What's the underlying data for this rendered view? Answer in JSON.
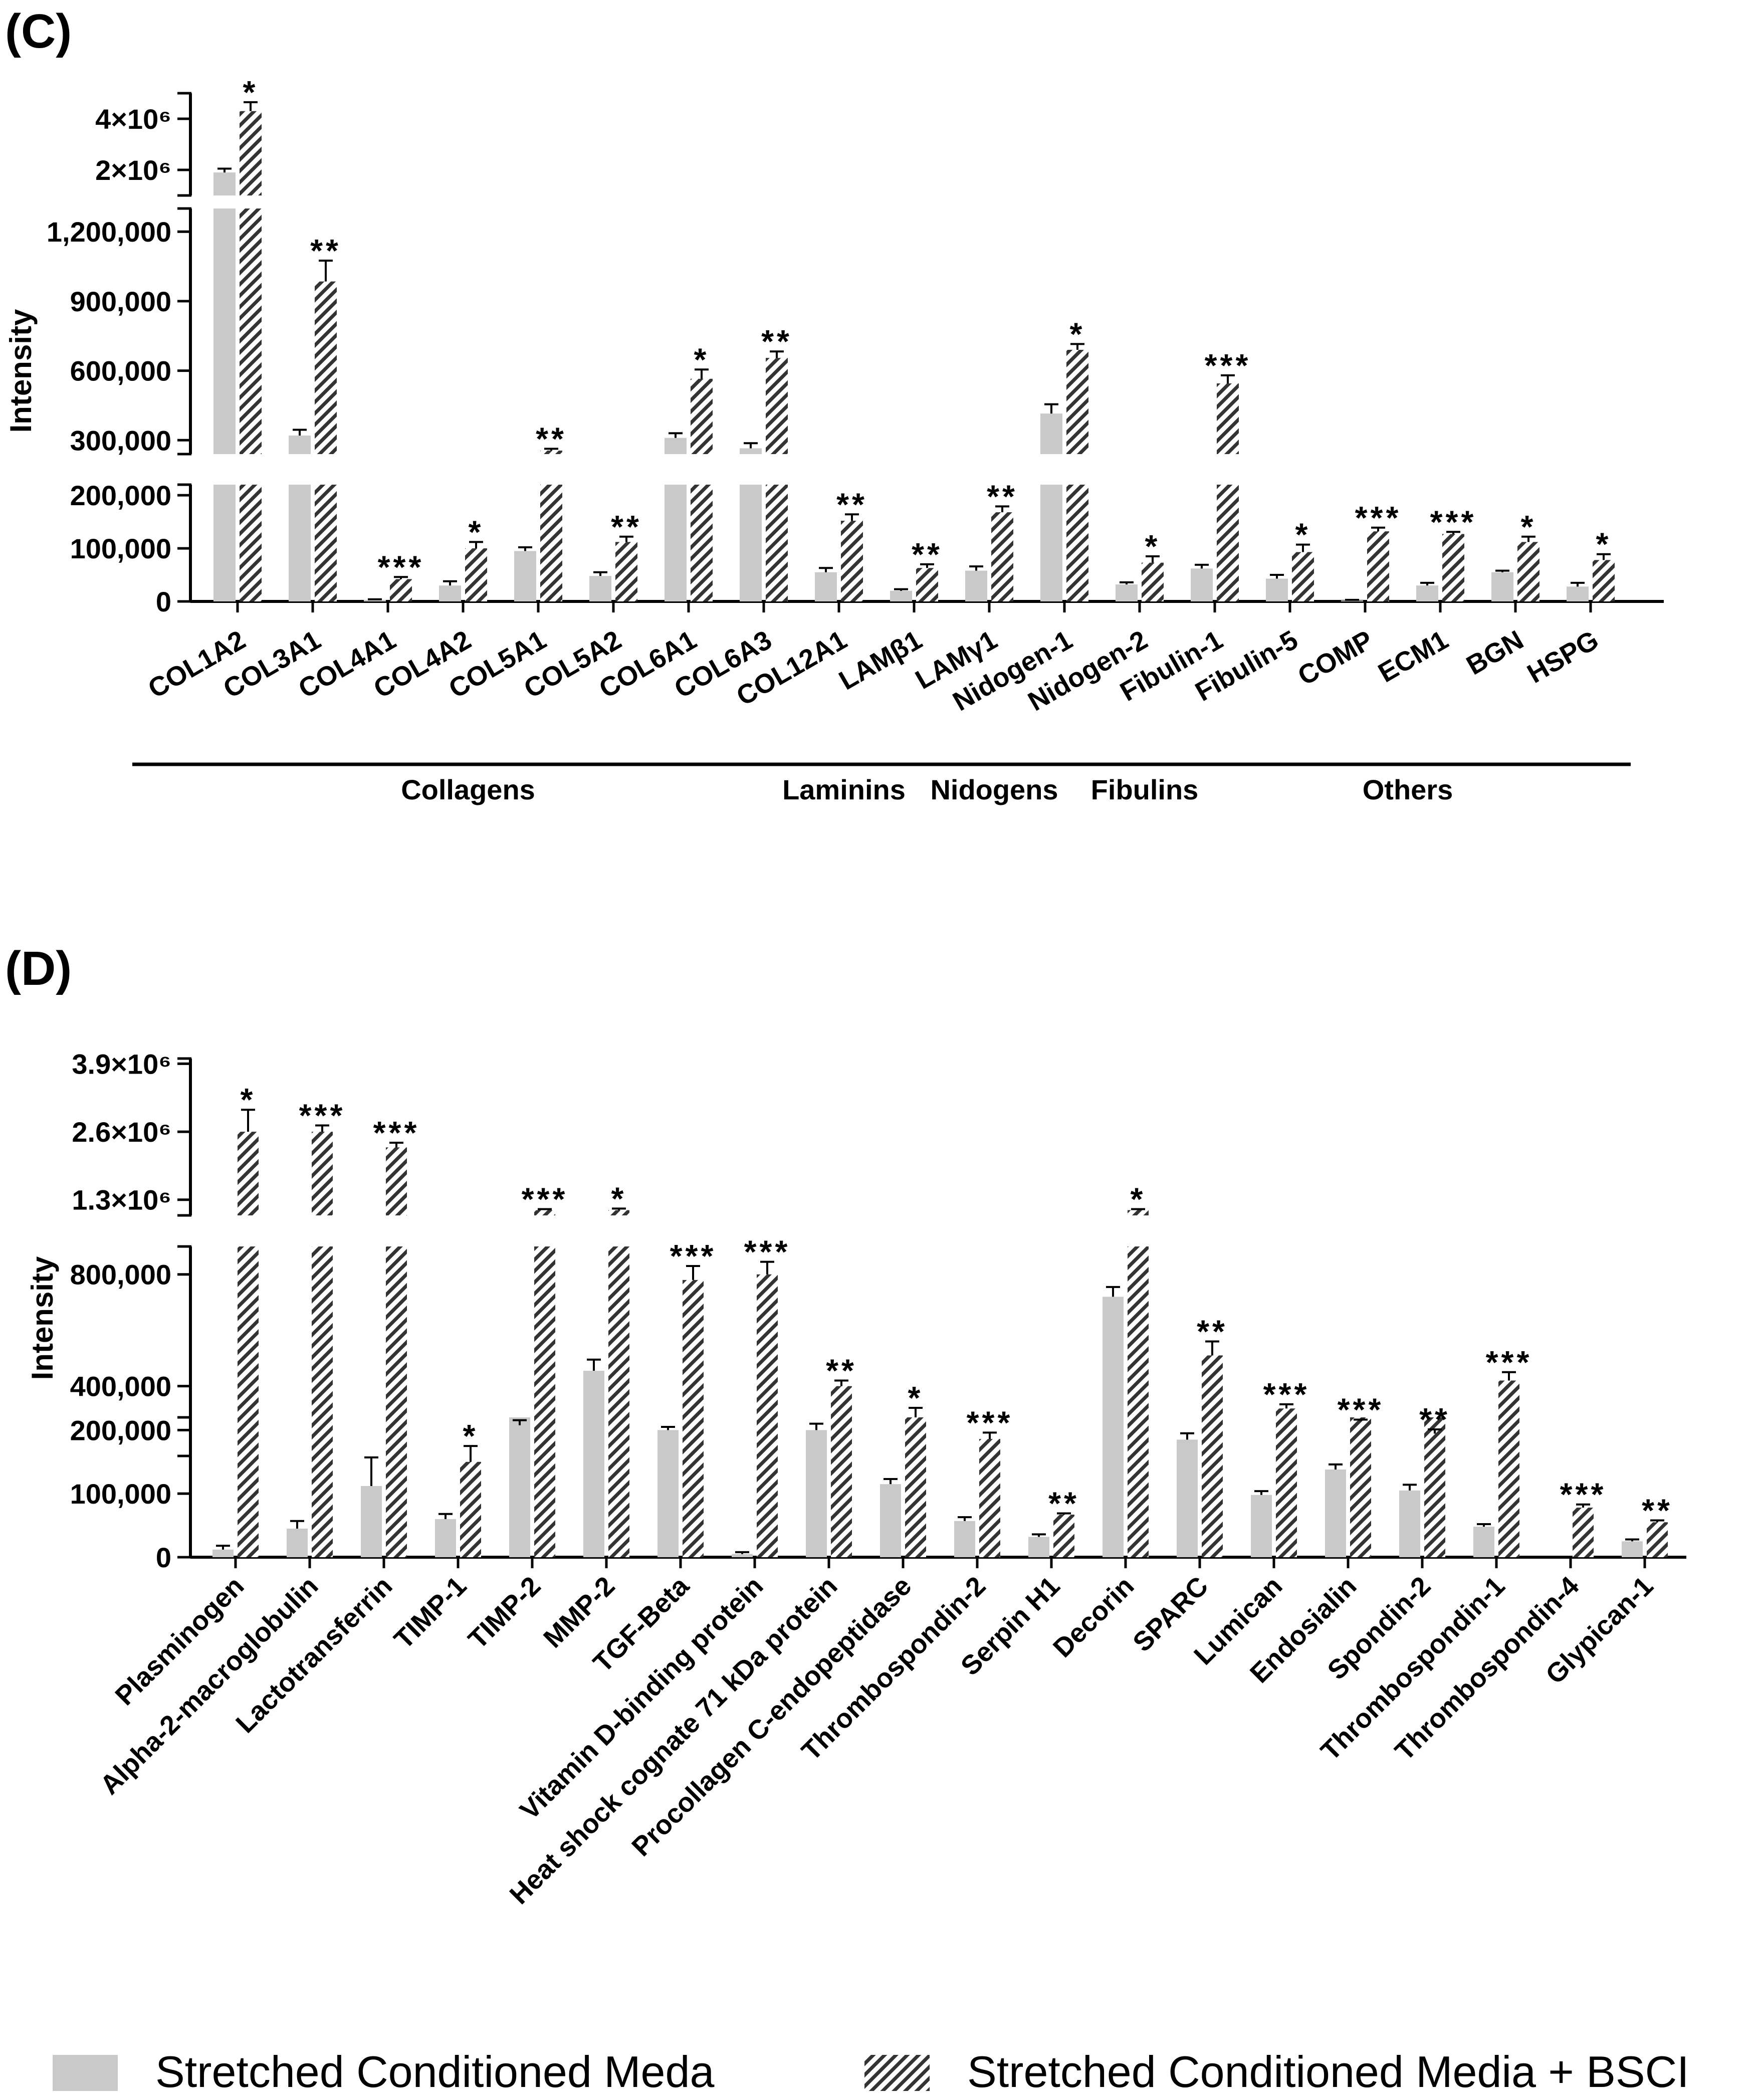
{
  "colors": {
    "bar1": "#c9c9c9",
    "bar2_hatch": "#333333",
    "axis": "#000000"
  },
  "legend": {
    "items": [
      {
        "label": "Stretched Conditioned Meda",
        "pattern": "solid"
      },
      {
        "label": "Stretched Conditioned Media + BSCI",
        "pattern": "hatched"
      }
    ]
  },
  "chart_data": [
    {
      "panel": "(C)",
      "type": "bar",
      "ylabel": "Intensity",
      "series_names": [
        "Stretched Conditioned Meda",
        "Stretched Conditioned Media + BSCI"
      ],
      "y_segments": [
        {
          "range": [
            0,
            220000
          ],
          "ticks": [
            0,
            100000,
            200000
          ],
          "tick_labels": [
            "0",
            "100,000",
            "200,000"
          ]
        },
        {
          "range": [
            240000,
            1300000
          ],
          "ticks": [
            300000,
            600000,
            900000,
            1200000
          ],
          "tick_labels": [
            "300,000",
            "600,000",
            "900,000",
            "1,200,000"
          ]
        },
        {
          "range": [
            1000000,
            5000000
          ],
          "ticks": [
            2000000,
            4000000
          ],
          "tick_labels": [
            "2×10⁶",
            "4×10⁶"
          ]
        }
      ],
      "categories": [
        "COL1A2",
        "COL3A1",
        "COL4A1",
        "COL4A2",
        "COL5A1",
        "COL5A2",
        "COL6A1",
        "COL6A3",
        "COL12A1",
        "LAMβ1",
        "LAMγ1",
        "Nidogen-1",
        "Nidogen-2",
        "Fibulin-1",
        "Fibulin-5",
        "COMP",
        "ECM1",
        "BGN",
        "HSPG"
      ],
      "series": [
        {
          "name": "Stretched Conditioned Meda",
          "values": [
            1900000,
            320000,
            3000,
            30000,
            95000,
            48000,
            310000,
            265000,
            55000,
            20000,
            58000,
            415000,
            32000,
            62000,
            43000,
            2000,
            30000,
            55000,
            28000
          ],
          "errors": [
            150000,
            25000,
            1000,
            8000,
            7000,
            7000,
            20000,
            22000,
            8000,
            3000,
            8000,
            40000,
            4000,
            7000,
            7000,
            1000,
            5000,
            3000,
            7000
          ]
        },
        {
          "name": "Stretched Conditioned Media + BSCI",
          "values": [
            4300000,
            985000,
            42000,
            100000,
            255000,
            112000,
            565000,
            655000,
            152000,
            63000,
            168000,
            690000,
            73000,
            545000,
            93000,
            132000,
            127000,
            112000,
            78000
          ],
          "errors": [
            350000,
            90000,
            4000,
            12000,
            8000,
            10000,
            40000,
            28000,
            12000,
            7000,
            11000,
            25000,
            12000,
            35000,
            14000,
            7000,
            4000,
            10000,
            11000
          ]
        }
      ],
      "significance": [
        "*",
        "**",
        "***",
        "*",
        "**",
        "**",
        "*",
        "**",
        "**",
        "**",
        "**",
        "*",
        "*",
        "***",
        "*",
        "***",
        "***",
        "*",
        "*"
      ],
      "groups": [
        {
          "label": "Collagens",
          "from": 0,
          "to": 7
        },
        {
          "label": "Laminins",
          "from": 8,
          "to": 9
        },
        {
          "label": "Nidogens",
          "from": 10,
          "to": 11
        },
        {
          "label": "Fibulins",
          "from": 12,
          "to": 13
        },
        {
          "label": "Others",
          "from": 14,
          "to": 18
        }
      ]
    },
    {
      "panel": "(D)",
      "type": "bar",
      "ylabel": "Intensity",
      "series_names": [
        "Stretched Conditioned Meda",
        "Stretched Conditioned Media + BSCI"
      ],
      "y_segments": [
        {
          "range": [
            0,
            220000
          ],
          "ticks": [
            0,
            100000,
            200000
          ],
          "tick_labels": [
            "0",
            "100,000",
            "200,000"
          ]
        },
        {
          "range": [
            150000,
            900000
          ],
          "ticks": [
            400000,
            800000
          ],
          "tick_labels": [
            "400,000",
            "800,000"
          ]
        },
        {
          "range": [
            1000000,
            4000000
          ],
          "ticks": [
            1300000,
            2600000,
            3900000
          ],
          "tick_labels": [
            "1.3×10⁶",
            "2.6×10⁶",
            "3.9×10⁶"
          ]
        }
      ],
      "categories": [
        "Plasminogen",
        "Alpha-2-macroglobulin",
        "Lactotransferrin",
        "TIMP-1",
        "TIMP-2",
        "MMP-2",
        "TGF-Beta",
        "Vitamin D-binding protein",
        "Heat shock cognate 71 kDa protein",
        "Procollagen C-endopeptidase",
        "Thrombospondin-2",
        "Serpin H1",
        "Decorin",
        "SPARC",
        "Lumican",
        "Endosialin",
        "Spondin-2",
        "Thrombospondin-1",
        "Thrombospondin-4",
        "Glypican-1"
      ],
      "series": [
        {
          "name": "Stretched Conditioned Meda",
          "values": [
            12000,
            45000,
            112000,
            60000,
            260000,
            455000,
            200000,
            5000,
            200000,
            115000,
            57000,
            32000,
            720000,
            185000,
            98000,
            138000,
            105000,
            48000,
            0,
            25000
          ],
          "errors": [
            6000,
            12000,
            45000,
            8000,
            18000,
            40000,
            5000,
            3000,
            10000,
            8000,
            6000,
            4000,
            35000,
            10000,
            6000,
            8000,
            9000,
            4000,
            0,
            3000
          ]
        },
        {
          "name": "Stretched Conditioned Media + BSCI",
          "values": [
            2600000,
            2600000,
            2300000,
            150000,
            1100000,
            1100000,
            780000,
            800000,
            400000,
            220000,
            186000,
            67000,
            1100000,
            510000,
            320000,
            275000,
            230000,
            420000,
            78000,
            55000
          ],
          "errors": [
            420000,
            120000,
            90000,
            25000,
            20000,
            30000,
            50000,
            45000,
            20000,
            15000,
            10000,
            2000,
            20000,
            50000,
            15000,
            5000,
            15000,
            30000,
            5000,
            3000
          ]
        }
      ],
      "significance": [
        "*",
        "***",
        "***",
        "*",
        "***",
        "*",
        "***",
        "***",
        "**",
        "*",
        "***",
        "**",
        "*",
        "**",
        "***",
        "***",
        "**",
        "***",
        "***",
        "**"
      ]
    }
  ]
}
